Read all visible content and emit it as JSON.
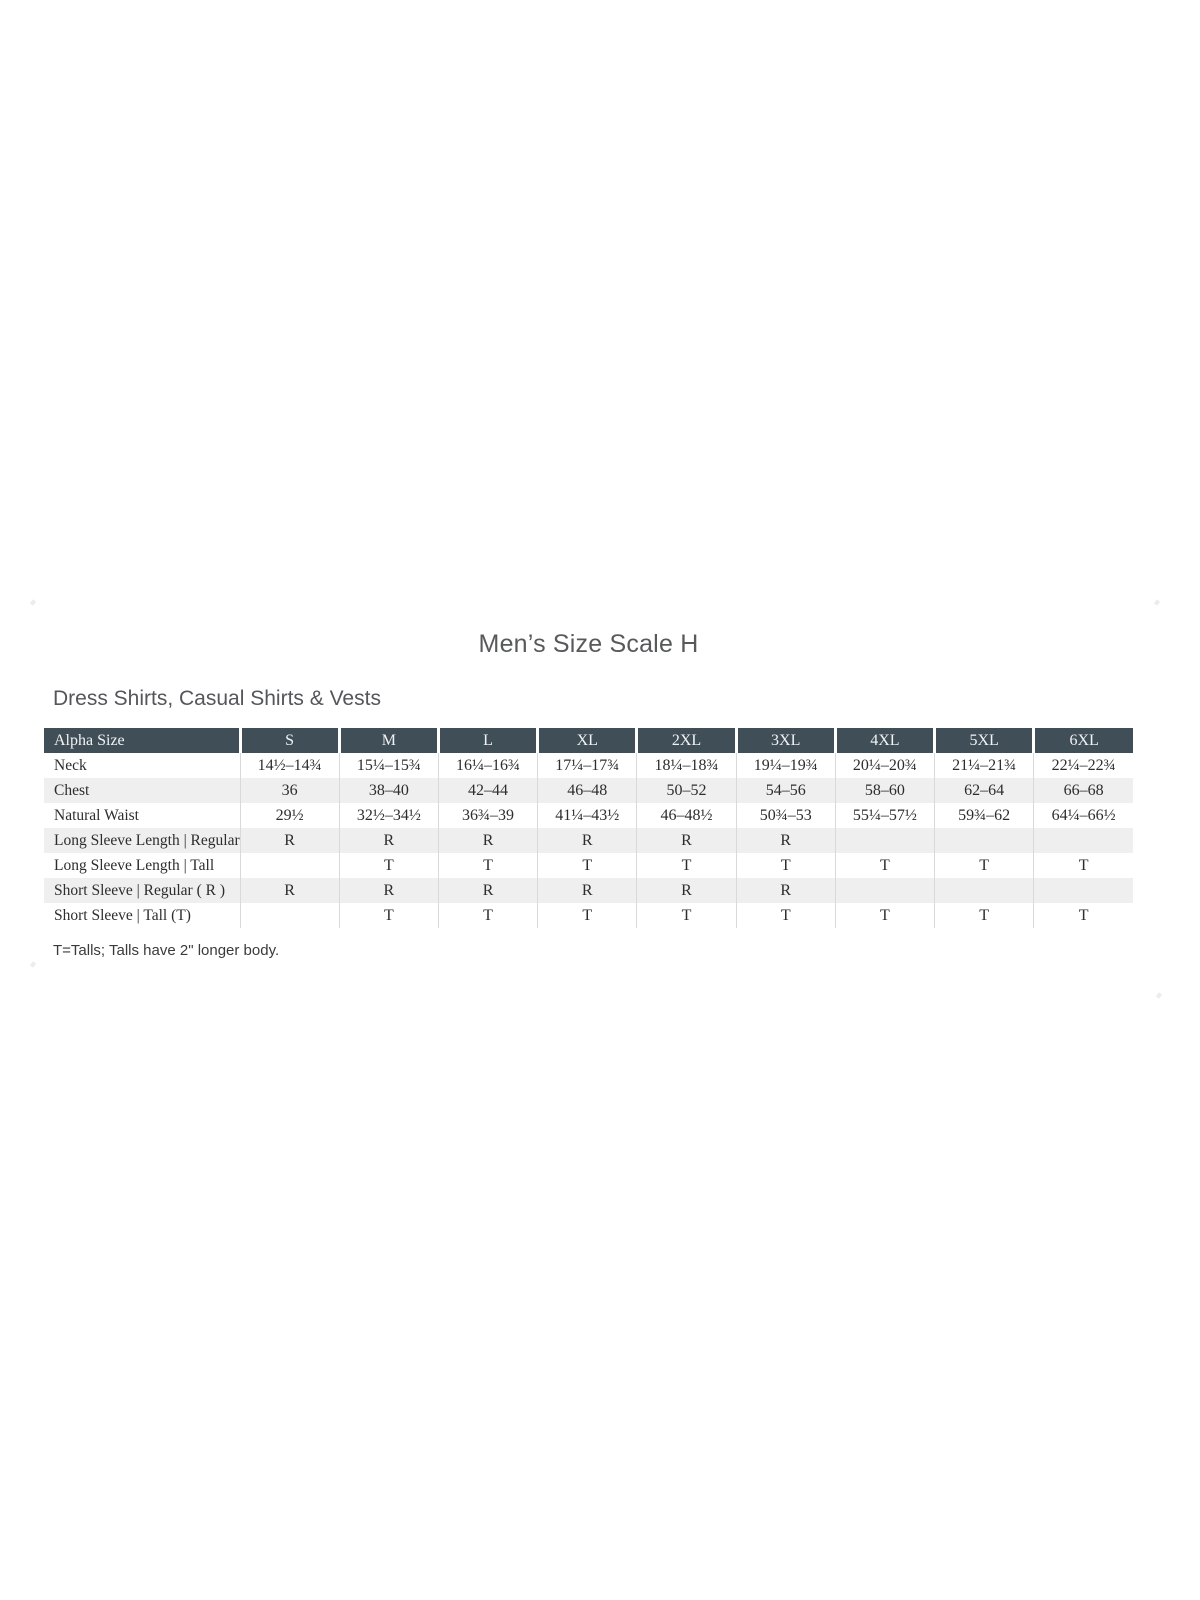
{
  "page": {
    "title": "Men’s Size Scale H",
    "section_heading": "Dress Shirts, Casual Shirts & Vests",
    "footnote": "T=Talls; Talls have 2\" longer body."
  },
  "size_table": {
    "columns": [
      "Alpha Size",
      "S",
      "M",
      "L",
      "XL",
      "2XL",
      "3XL",
      "4XL",
      "5XL",
      "6XL"
    ],
    "rows": [
      {
        "label": "Neck",
        "values": [
          "14½–14¾",
          "15¼–15¾",
          "16¼–16¾",
          "17¼–17¾",
          "18¼–18¾",
          "19¼–19¾",
          "20¼–20¾",
          "21¼–21¾",
          "22¼–22¾"
        ]
      },
      {
        "label": "Chest",
        "values": [
          "36",
          "38–40",
          "42–44",
          "46–48",
          "50–52",
          "54–56",
          "58–60",
          "62–64",
          "66–68"
        ]
      },
      {
        "label": "Natural Waist",
        "values": [
          "29½",
          "32½–34½",
          "36¾–39",
          "41¼–43½",
          "46–48½",
          "50¾–53",
          "55¼–57½",
          "59¾–62",
          "64¼–66½"
        ]
      },
      {
        "label": "Long Sleeve Length  |  Regular",
        "values": [
          "R",
          "R",
          "R",
          "R",
          "R",
          "R",
          "",
          "",
          ""
        ]
      },
      {
        "label": "Long Sleeve Length  |  Tall",
        "values": [
          "",
          "T",
          "T",
          "T",
          "T",
          "T",
          "T",
          "T",
          "T"
        ]
      },
      {
        "label": "Short Sleeve  |  Regular ( R )",
        "values": [
          "R",
          "R",
          "R",
          "R",
          "R",
          "R",
          "",
          "",
          ""
        ]
      },
      {
        "label": "Short Sleeve  |  Tall (T)",
        "values": [
          "",
          "T",
          "T",
          "T",
          "T",
          "T",
          "T",
          "T",
          "T"
        ]
      }
    ]
  },
  "colors": {
    "header_background": "#404e58",
    "header_text": "#f3f3f3",
    "row_stripe": "#efeff0",
    "cell_divider": "#d9d9d9",
    "body_text": "#2d2d2d",
    "title_text": "#58595b"
  }
}
